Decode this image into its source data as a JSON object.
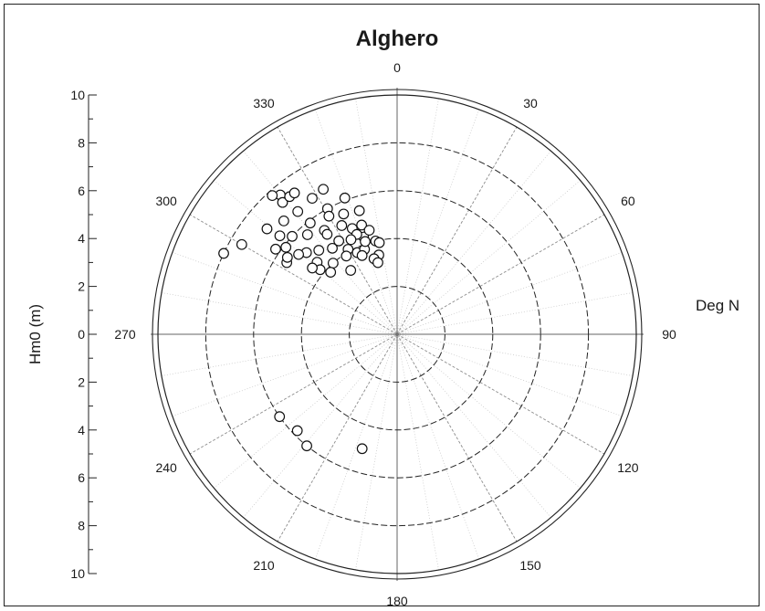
{
  "chart_data": {
    "type": "scatter",
    "projection": "polar",
    "title": "Alghero",
    "angular_label": "Deg N",
    "radial_label": "Hm0 (m)",
    "angular_direction": "clockwise",
    "zero_direction": "north",
    "radial_range": [
      0,
      10
    ],
    "radial_ticks": [
      10,
      8,
      6,
      4,
      2,
      0,
      2,
      4,
      6,
      8,
      10
    ],
    "angle_ticks": [
      "0",
      "30",
      "60",
      "90",
      "120",
      "150",
      "180",
      "210",
      "240",
      "270",
      "300",
      "330"
    ],
    "grid": true,
    "marker": "open-circle",
    "points": [
      [
        295,
        8.0
      ],
      [
        300,
        7.5
      ],
      [
        320,
        7.6
      ],
      [
        318,
        7.8
      ],
      [
        319,
        7.3
      ],
      [
        322,
        7.3
      ],
      [
        324,
        7.3
      ],
      [
        309,
        7.0
      ],
      [
        315,
        6.7
      ],
      [
        321,
        6.6
      ],
      [
        328,
        6.7
      ],
      [
        333,
        6.8
      ],
      [
        305,
        6.2
      ],
      [
        308,
        5.9
      ],
      [
        303,
        5.5
      ],
      [
        313,
        6.0
      ],
      [
        318,
        5.6
      ],
      [
        322,
        5.9
      ],
      [
        312,
        5.1
      ],
      [
        331,
        6.0
      ],
      [
        336,
        5.5
      ],
      [
        339,
        6.1
      ],
      [
        333,
        5.1
      ],
      [
        325,
        5.3
      ],
      [
        317,
        4.8
      ],
      [
        328,
        4.6
      ],
      [
        337,
        4.8
      ],
      [
        342,
        4.8
      ],
      [
        343,
        5.4
      ],
      [
        323,
        4.5
      ],
      [
        312,
        4.5
      ],
      [
        318,
        4.0
      ],
      [
        330,
        4.1
      ],
      [
        341,
        4.3
      ],
      [
        334,
        3.8
      ],
      [
        327,
        3.9
      ],
      [
        310,
        4.2
      ],
      [
        308,
        4.5
      ],
      [
        345,
        4.5
      ],
      [
        339,
        3.8
      ],
      [
        347,
        4.0
      ],
      [
        338,
        4.5
      ],
      [
        334,
        4.4
      ],
      [
        341,
        4.1
      ],
      [
        347,
        3.4
      ],
      [
        349,
        3.9
      ],
      [
        343,
        3.3
      ],
      [
        336,
        3.6
      ],
      [
        324,
        3.3
      ],
      [
        313,
        3.8
      ],
      [
        325,
        5.1
      ],
      [
        305,
        5.6
      ],
      [
        309,
        5.3
      ],
      [
        310,
        6.4
      ],
      [
        330,
        5.7
      ],
      [
        345,
        3.1
      ],
      [
        235,
        6.0
      ],
      [
        226,
        5.8
      ],
      [
        219,
        6.0
      ],
      [
        197,
        5.0
      ]
    ]
  }
}
